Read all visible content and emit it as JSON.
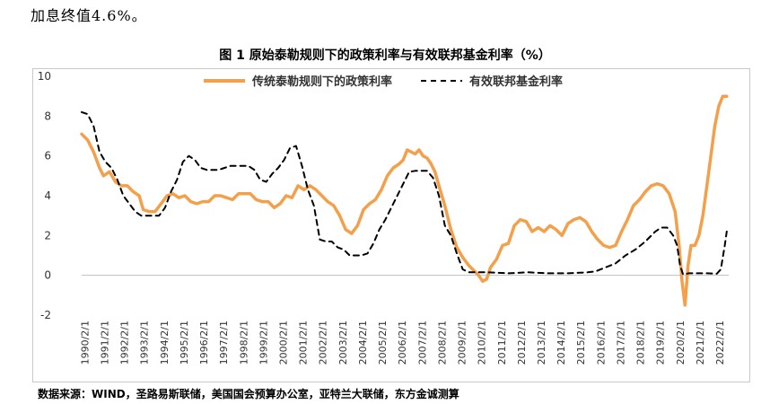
{
  "intro_text": "加息终值4.6%。",
  "source_text": "数据来源：WIND，圣路易斯联储，美国国会预算办公室，亚特兰大联储，东方金诚测算",
  "chart_data": {
    "type": "line",
    "title": "图 1  原始泰勒规则下的政策利率与有效联邦基金利率（%）",
    "xlabel": "",
    "ylabel": "",
    "ylim": [
      -2,
      10
    ],
    "yticks": [
      -2,
      0,
      2,
      4,
      6,
      8,
      10
    ],
    "xlim": [
      1990.0,
      2022.6
    ],
    "legend_position": "top",
    "x_tick_labels": [
      "1990/2/1",
      "1991/2/1",
      "1992/2/1",
      "1993/2/1",
      "1994/2/1",
      "1995/2/1",
      "1996/2/1",
      "1997/2/1",
      "1998/2/1",
      "1999/2/1",
      "2000/2/1",
      "2001/2/1",
      "2002/2/1",
      "2003/2/1",
      "2004/2/1",
      "2005/2/1",
      "2006/2/1",
      "2007/2/1",
      "2008/2/1",
      "2009/2/1",
      "2010/2/1",
      "2011/2/1",
      "2012/2/1",
      "2013/2/1",
      "2014/2/1",
      "2015/2/1",
      "2016/2/1",
      "2017/2/1",
      "2018/2/1",
      "2019/2/1",
      "2020/2/1",
      "2021/2/1",
      "2022/2/1"
    ],
    "series": [
      {
        "name": "传统泰勒规则下的政策利率",
        "color": "#f4a04b",
        "style": "solid",
        "x": [
          1990.0,
          1990.3,
          1990.6,
          1990.9,
          1991.1,
          1991.4,
          1991.7,
          1992.0,
          1992.3,
          1992.6,
          1992.9,
          1993.1,
          1993.4,
          1993.7,
          1994.0,
          1994.3,
          1994.6,
          1994.9,
          1995.2,
          1995.5,
          1995.8,
          1996.1,
          1996.4,
          1996.7,
          1997.0,
          1997.3,
          1997.6,
          1997.9,
          1998.2,
          1998.5,
          1998.8,
          1999.1,
          1999.4,
          1999.7,
          2000.0,
          2000.3,
          2000.6,
          2000.9,
          2001.2,
          2001.5,
          2001.8,
          2002.1,
          2002.4,
          2002.7,
          2003.0,
          2003.3,
          2003.6,
          2003.9,
          2004.2,
          2004.5,
          2004.8,
          2005.1,
          2005.4,
          2005.7,
          2006.0,
          2006.2,
          2006.4,
          2006.6,
          2006.8,
          2007.0,
          2007.2,
          2007.4,
          2007.6,
          2007.8,
          2008.0,
          2008.3,
          2008.6,
          2008.9,
          2009.2,
          2009.5,
          2009.8,
          2010.0,
          2010.2,
          2010.4,
          2010.6,
          2010.9,
          2011.2,
          2011.5,
          2011.8,
          2012.1,
          2012.4,
          2012.7,
          2013.0,
          2013.3,
          2013.6,
          2013.9,
          2014.2,
          2014.5,
          2014.8,
          2015.1,
          2015.4,
          2015.7,
          2016.0,
          2016.3,
          2016.6,
          2016.9,
          2017.2,
          2017.5,
          2017.8,
          2018.1,
          2018.4,
          2018.7,
          2019.0,
          2019.3,
          2019.6,
          2019.9,
          2020.1,
          2020.25,
          2020.4,
          2020.55,
          2020.7,
          2020.9,
          2021.1,
          2021.3,
          2021.5,
          2021.7,
          2021.9,
          2022.1,
          2022.3,
          2022.5
        ],
        "y": [
          7.1,
          6.8,
          6.2,
          5.4,
          5.0,
          5.2,
          4.7,
          4.5,
          4.5,
          4.2,
          4.0,
          3.3,
          3.2,
          3.2,
          3.6,
          4.0,
          4.1,
          3.9,
          4.0,
          3.7,
          3.6,
          3.7,
          3.7,
          4.0,
          4.0,
          3.9,
          3.8,
          4.1,
          4.1,
          4.1,
          3.8,
          3.7,
          3.7,
          3.4,
          3.6,
          4.0,
          3.9,
          4.5,
          4.3,
          4.5,
          4.3,
          4.0,
          3.7,
          3.5,
          3.0,
          2.3,
          2.1,
          2.5,
          3.3,
          3.6,
          3.8,
          4.3,
          5.0,
          5.4,
          5.6,
          5.8,
          6.3,
          6.2,
          6.1,
          6.3,
          6.0,
          5.9,
          5.6,
          5.2,
          4.5,
          3.5,
          2.3,
          1.4,
          0.9,
          0.5,
          0.2,
          0.0,
          -0.3,
          -0.2,
          0.4,
          0.8,
          1.5,
          1.6,
          2.5,
          2.8,
          2.7,
          2.2,
          2.4,
          2.2,
          2.5,
          2.3,
          2.0,
          2.6,
          2.8,
          2.9,
          2.7,
          2.2,
          1.8,
          1.5,
          1.4,
          1.5,
          2.2,
          2.8,
          3.5,
          3.8,
          4.2,
          4.5,
          4.6,
          4.5,
          4.1,
          3.2,
          1.5,
          -0.3,
          -1.5,
          0.5,
          1.5,
          1.5,
          2.0,
          3.0,
          4.5,
          6.0,
          7.5,
          8.5,
          9.0,
          9.0
        ]
      },
      {
        "name": "有效联邦基金利率",
        "color": "#000000",
        "style": "dashed",
        "x": [
          1990.0,
          1990.3,
          1990.6,
          1990.9,
          1991.2,
          1991.5,
          1991.8,
          1992.1,
          1992.4,
          1992.7,
          1993.0,
          1993.3,
          1993.6,
          1993.9,
          1994.2,
          1994.5,
          1994.8,
          1995.1,
          1995.4,
          1995.7,
          1996.0,
          1996.3,
          1996.6,
          1996.9,
          1997.2,
          1997.5,
          1997.8,
          1998.1,
          1998.4,
          1998.7,
          1999.0,
          1999.3,
          1999.6,
          1999.9,
          2000.2,
          2000.5,
          2000.8,
          2001.1,
          2001.4,
          2001.7,
          2002.0,
          2002.3,
          2002.6,
          2002.9,
          2003.2,
          2003.5,
          2003.8,
          2004.1,
          2004.4,
          2004.7,
          2005.0,
          2005.3,
          2005.6,
          2005.9,
          2006.2,
          2006.5,
          2006.8,
          2007.1,
          2007.4,
          2007.7,
          2008.0,
          2008.3,
          2008.6,
          2008.9,
          2009.2,
          2009.5,
          2009.8,
          2010.5,
          2011.5,
          2012.5,
          2013.5,
          2014.5,
          2015.5,
          2015.9,
          2016.4,
          2016.9,
          2017.4,
          2017.9,
          2018.4,
          2018.9,
          2019.2,
          2019.5,
          2019.8,
          2020.0,
          2020.15,
          2020.3,
          2020.6,
          2021.0,
          2021.5,
          2022.0,
          2022.2,
          2022.4,
          2022.5
        ],
        "y": [
          8.2,
          8.1,
          7.5,
          6.2,
          5.7,
          5.4,
          4.8,
          4.0,
          3.6,
          3.2,
          3.0,
          3.0,
          3.0,
          3.0,
          3.4,
          4.2,
          4.8,
          5.7,
          6.0,
          5.8,
          5.4,
          5.3,
          5.3,
          5.3,
          5.4,
          5.5,
          5.5,
          5.5,
          5.5,
          5.3,
          4.8,
          4.7,
          5.1,
          5.4,
          5.8,
          6.4,
          6.5,
          5.5,
          4.3,
          3.5,
          1.8,
          1.7,
          1.7,
          1.4,
          1.3,
          1.0,
          1.0,
          1.0,
          1.1,
          1.6,
          2.3,
          2.8,
          3.4,
          4.0,
          4.6,
          5.2,
          5.25,
          5.25,
          5.25,
          4.9,
          4.0,
          2.5,
          2.0,
          1.1,
          0.3,
          0.15,
          0.15,
          0.15,
          0.1,
          0.15,
          0.1,
          0.1,
          0.15,
          0.2,
          0.4,
          0.6,
          1.0,
          1.3,
          1.7,
          2.2,
          2.4,
          2.4,
          2.0,
          1.5,
          0.5,
          0.05,
          0.1,
          0.1,
          0.1,
          0.08,
          0.3,
          1.5,
          2.2
        ]
      }
    ]
  }
}
